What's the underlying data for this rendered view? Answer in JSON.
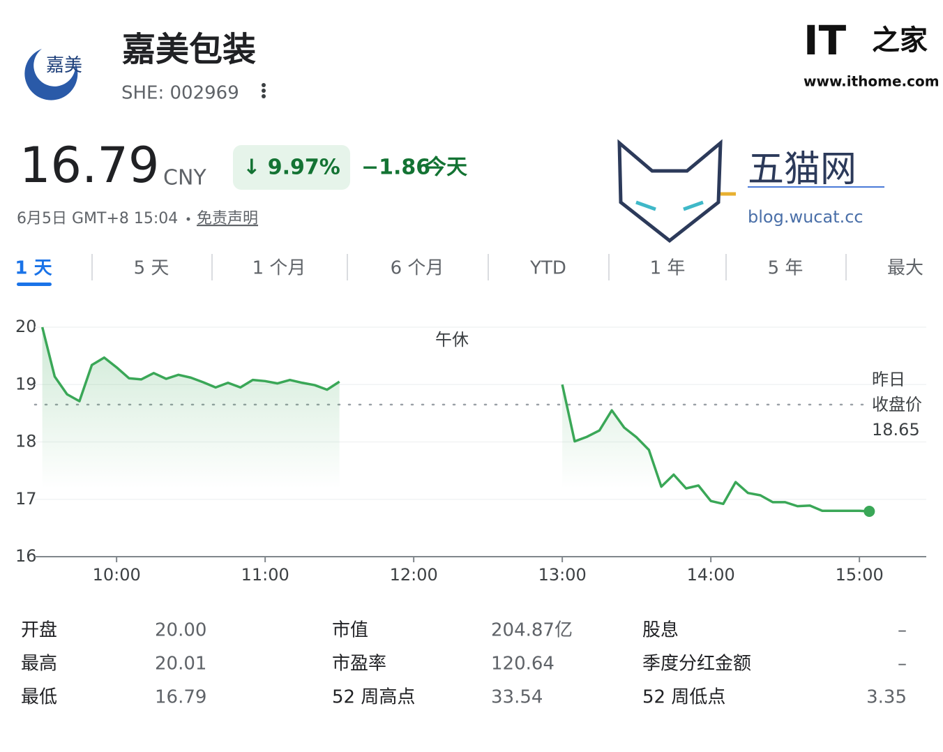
{
  "header": {
    "company": "嘉美包装",
    "ticker": "SHE: 002969"
  },
  "quote": {
    "price": "16.79",
    "currency": "CNY",
    "change_percent": "↓ 9.97%",
    "change": "−1.86",
    "change_period": "今天",
    "timestamp": "6月5日 GMT+8 15:04",
    "disclaimer": "免责声明"
  },
  "watermarks": {
    "ithome_logo": "IT",
    "ithome_logo_cn": "之家",
    "ithome_site": "www.ithome.com",
    "wucat_name": "五猫网",
    "wucat_site": "blog.wucat.cc"
  },
  "tabs": [
    "1 天",
    "5 天",
    "1 个月",
    "6 个月",
    "YTD",
    "1 年",
    "5 年",
    "最大"
  ],
  "chart_data": {
    "type": "line",
    "color": "#3aa757",
    "x": [
      "09:30",
      "09:35",
      "09:40",
      "09:45",
      "09:50",
      "09:55",
      "10:00",
      "10:05",
      "10:10",
      "10:15",
      "10:20",
      "10:25",
      "10:30",
      "10:35",
      "10:40",
      "10:45",
      "10:50",
      "10:55",
      "11:00",
      "11:05",
      "11:10",
      "11:15",
      "11:20",
      "11:25",
      "11:30",
      "13:00",
      "13:05",
      "13:10",
      "13:15",
      "13:20",
      "13:25",
      "13:30",
      "13:35",
      "13:40",
      "13:45",
      "13:50",
      "13:55",
      "14:00",
      "14:05",
      "14:10",
      "14:15",
      "14:20",
      "14:25",
      "14:30",
      "14:35",
      "14:40",
      "14:45",
      "14:50",
      "14:55",
      "15:00",
      "15:04"
    ],
    "values": [
      20.0,
      19.14,
      18.83,
      18.71,
      19.34,
      19.47,
      19.3,
      19.11,
      19.09,
      19.2,
      19.1,
      19.17,
      19.12,
      19.04,
      18.95,
      19.03,
      18.95,
      19.08,
      19.06,
      19.02,
      19.08,
      19.03,
      18.99,
      18.91,
      19.05,
      19.0,
      18.01,
      18.09,
      18.2,
      18.55,
      18.25,
      18.08,
      17.86,
      17.22,
      17.43,
      17.19,
      17.24,
      16.97,
      16.92,
      17.3,
      17.11,
      17.07,
      16.95,
      16.95,
      16.88,
      16.89,
      16.8,
      16.8,
      16.8,
      16.8,
      16.79
    ],
    "xlim": [
      "09:27",
      "15:27"
    ],
    "xticks": [
      "10:00",
      "11:00",
      "12:00",
      "13:00",
      "14:00",
      "15:00"
    ],
    "ylim": [
      16,
      20
    ],
    "yticks": [
      16,
      17,
      18,
      19,
      20
    ],
    "grid": true,
    "annotation": "午休",
    "reference_line": {
      "value": 18.65,
      "label": [
        "昨日",
        "收盘价"
      ]
    }
  },
  "stats": {
    "rows": [
      [
        "开盘",
        "20.00",
        "市值",
        "204.87亿",
        "股息",
        "–"
      ],
      [
        "最高",
        "20.01",
        "市盈率",
        "120.64",
        "季度分红金额",
        "–"
      ],
      [
        "最低",
        "16.79",
        "52 周高点",
        "33.54",
        "52 周低点",
        "3.35"
      ]
    ]
  }
}
